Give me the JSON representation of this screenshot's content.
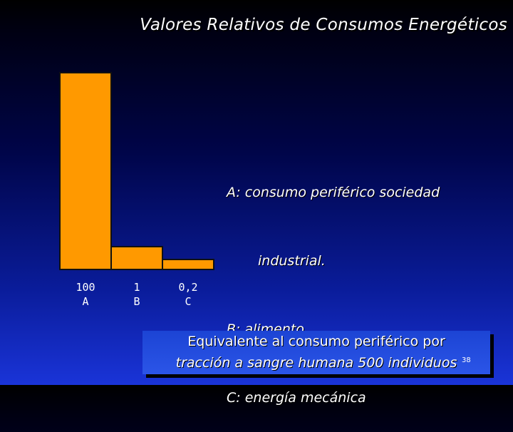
{
  "title": "Valores Relativos de Consumos Energéticos",
  "chart_data": {
    "type": "bar",
    "categories": [
      "A",
      "B",
      "C"
    ],
    "value_labels": [
      "100",
      "1",
      "0,2"
    ],
    "values": [
      100,
      1,
      0.2
    ],
    "ylim": [
      0,
      100
    ],
    "bar_color": "#FF9900",
    "xlabel": "",
    "ylabel": ""
  },
  "legend": {
    "lines": [
      "A: consumo periférico sociedad",
      "industrial.",
      "B: alimento.",
      "C: energía mecánica"
    ]
  },
  "note": {
    "line1": "Equivalente al consumo periférico por",
    "line2": "tracción a sangre humana 500 individuos"
  },
  "page_number": "38"
}
